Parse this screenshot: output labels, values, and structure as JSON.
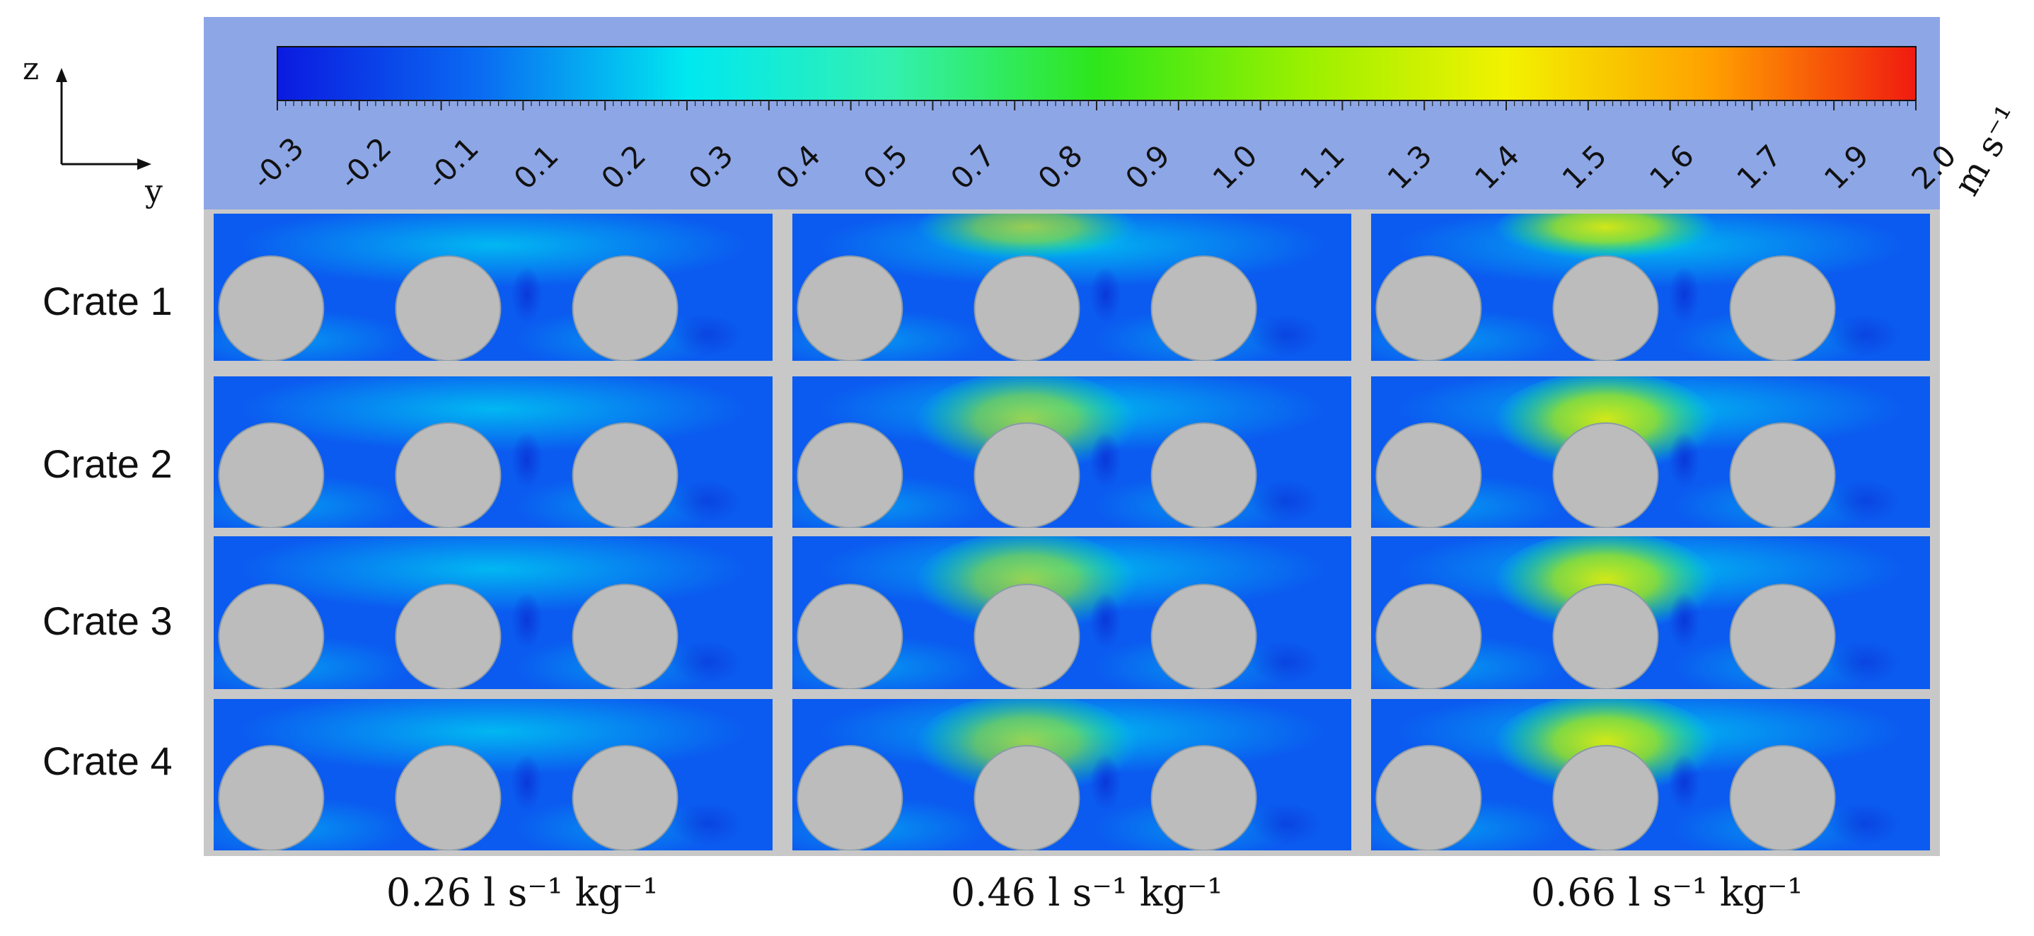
{
  "axes": {
    "z_label": "z",
    "y_label": "y"
  },
  "colorbar": {
    "ticks": [
      "-0.3",
      "-0.2",
      "-0.1",
      "0.1",
      "0.2",
      "0.3",
      "0.4",
      "0.5",
      "0.7",
      "0.8",
      "0.9",
      "1.0",
      "1.1",
      "1.3",
      "1.4",
      "1.5",
      "1.6",
      "1.7",
      "1.9",
      "2.0"
    ],
    "unit": "m s⁻¹",
    "colors": [
      "#0b1ae0",
      "#0a6cf2",
      "#00e8f0",
      "#33f0b0",
      "#2ee61a",
      "#98f000",
      "#f2f200",
      "#ffa000",
      "#f01a10"
    ],
    "frame_bg": "#8da6e6"
  },
  "rows": [
    {
      "label": "Crate 1"
    },
    {
      "label": "Crate 2"
    },
    {
      "label": "Crate 3"
    },
    {
      "label": "Crate 4"
    }
  ],
  "columns": [
    {
      "label": "0.26 l s⁻¹ kg⁻¹",
      "hotspot_intensity": 0.0
    },
    {
      "label": "0.46 l s⁻¹ kg⁻¹",
      "hotspot_intensity": 0.65
    },
    {
      "label": "0.66 l s⁻¹ kg⁻¹",
      "hotspot_intensity": 0.9
    }
  ],
  "field_colors": {
    "base": "#0b5bf0",
    "mid": "#00b4f0",
    "hot": "#c8ee10",
    "cylinder": "#bcbcbc",
    "divider": "#c8c8c8"
  }
}
